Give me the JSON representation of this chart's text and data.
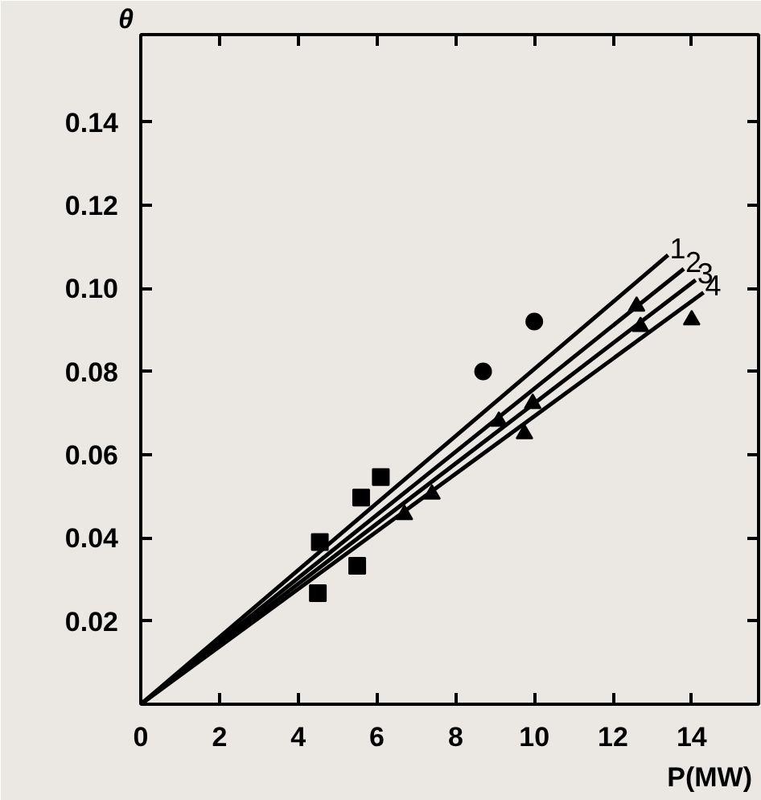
{
  "chart_data": {
    "type": "scatter",
    "xlabel": "P(MW)",
    "ylabel": "θ",
    "xlim": [
      0,
      15.7
    ],
    "ylim": [
      0,
      0.161
    ],
    "xticks": [
      {
        "value": 0,
        "label": "0"
      },
      2,
      4,
      6,
      8,
      10,
      12,
      14
    ],
    "yticks": [
      0.02,
      0.04,
      0.06,
      0.08,
      {
        "value": 0.1,
        "label": "0.10"
      },
      0.12,
      0.14
    ],
    "grid": false,
    "series": [
      {
        "name": "1",
        "type": "line",
        "color": "#000000",
        "x": [
          0,
          13.4
        ],
        "values": [
          0,
          0.108
        ]
      },
      {
        "name": "2",
        "type": "line",
        "color": "#000000",
        "x": [
          0,
          13.8
        ],
        "values": [
          0,
          0.1047
        ]
      },
      {
        "name": "3",
        "type": "line",
        "color": "#000000",
        "x": [
          0,
          14.1
        ],
        "values": [
          0,
          0.102
        ]
      },
      {
        "name": "4",
        "type": "line",
        "color": "#000000",
        "x": [
          0,
          14.3
        ],
        "values": [
          0,
          0.099
        ]
      },
      {
        "marker": "square",
        "color": "#000000",
        "x": [
          4.5,
          5.5,
          5.6,
          6.1,
          4.55
        ],
        "values": [
          0.0267,
          0.0333,
          0.0497,
          0.0546,
          0.039
        ]
      },
      {
        "marker": "circle",
        "color": "#000000",
        "x": [
          10.0,
          8.7
        ],
        "values": [
          0.092,
          0.08
        ]
      },
      {
        "marker": "triangle",
        "color": "#000000",
        "x": [
          12.6,
          12.7,
          14.0,
          9.96,
          9.75,
          9.1,
          6.7,
          7.4
        ],
        "values": [
          0.0957,
          0.0908,
          0.0924,
          0.0723,
          0.065,
          0.068,
          0.0456,
          0.0505
        ]
      }
    ]
  }
}
